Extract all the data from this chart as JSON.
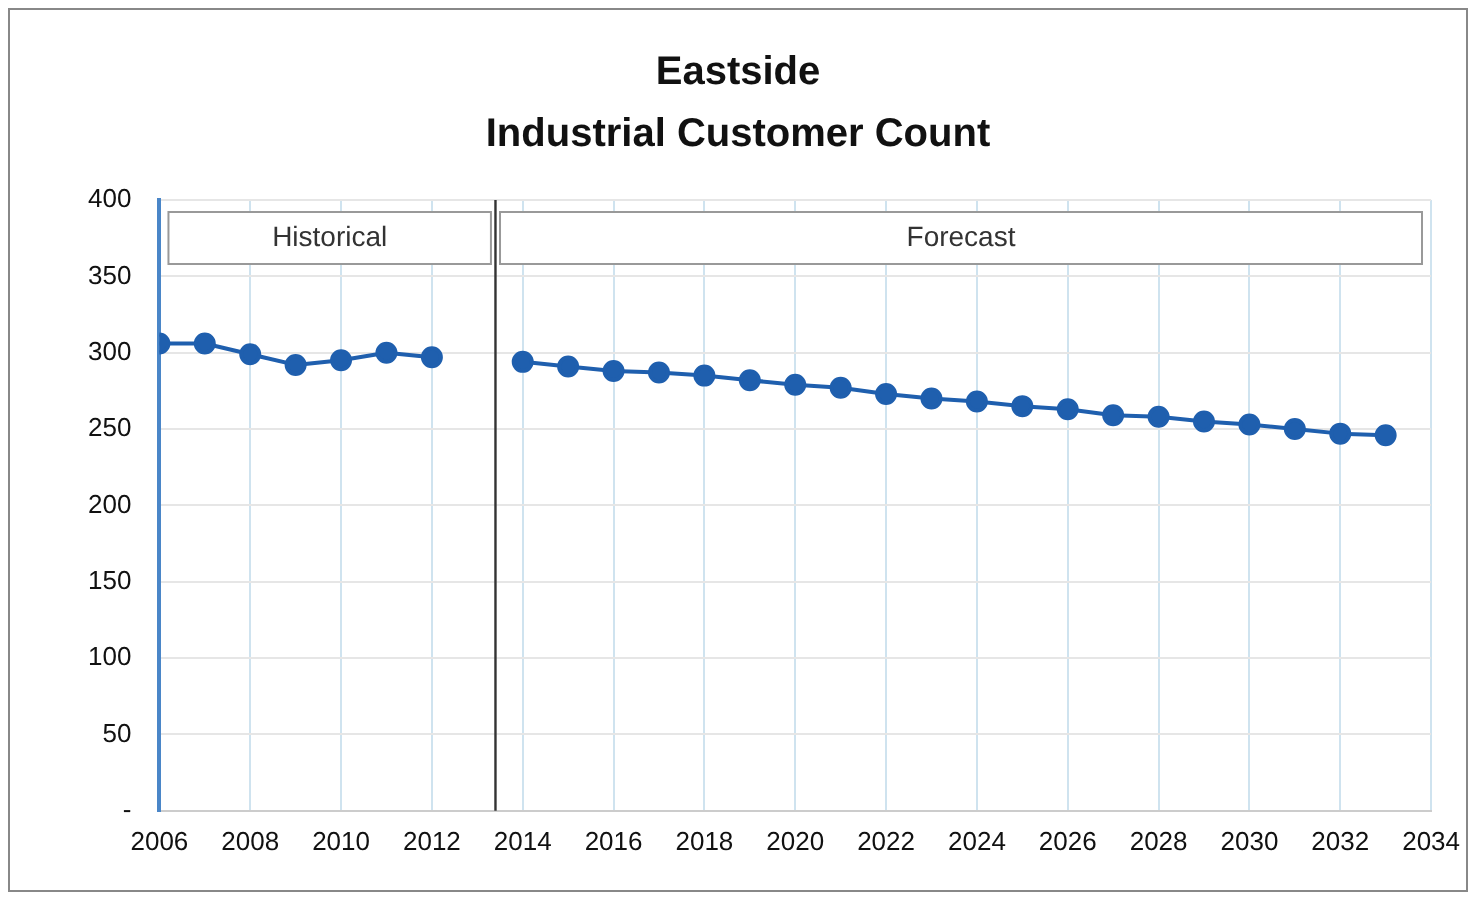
{
  "chart_data": {
    "type": "line",
    "title": "Eastside",
    "subtitle": "Industrial Customer Count",
    "x": [
      2006,
      2007,
      2008,
      2009,
      2010,
      2011,
      2012,
      2013,
      2014,
      2015,
      2016,
      2017,
      2018,
      2019,
      2020,
      2021,
      2022,
      2023,
      2024,
      2025,
      2026,
      2027,
      2028,
      2029,
      2030,
      2031,
      2032,
      2033
    ],
    "series": [
      {
        "color": "#1f5fae",
        "values": [
          306,
          306,
          299,
          292,
          295,
          300,
          297,
          null,
          294,
          291,
          288,
          287,
          285,
          282,
          279,
          277,
          273,
          270,
          268,
          265,
          263,
          259,
          258,
          255,
          253,
          250,
          247,
          246
        ]
      }
    ],
    "xlim": [
      2006,
      2034
    ],
    "xticks": [
      2006,
      2008,
      2010,
      2012,
      2014,
      2016,
      2018,
      2020,
      2022,
      2024,
      2026,
      2028,
      2030,
      2032,
      2034
    ],
    "ylim": [
      0,
      400
    ],
    "yticks": [
      {
        "value": 0,
        "label": "-"
      },
      50,
      100,
      150,
      200,
      250,
      300,
      350,
      400
    ],
    "grid": true,
    "marker": "circle",
    "line_style": "solid",
    "legend": false,
    "ref_lines": [
      {
        "axis": "x",
        "value": 2013.4,
        "color": "#333333"
      }
    ],
    "bands": [
      {
        "axis": "x",
        "from": 2006.2,
        "to": 2013.3,
        "label": "Historical",
        "color": "#ffffff"
      },
      {
        "axis": "x",
        "from": 2013.5,
        "to": 2033.8,
        "label": "Forecast",
        "color": "#ffffff"
      }
    ]
  }
}
